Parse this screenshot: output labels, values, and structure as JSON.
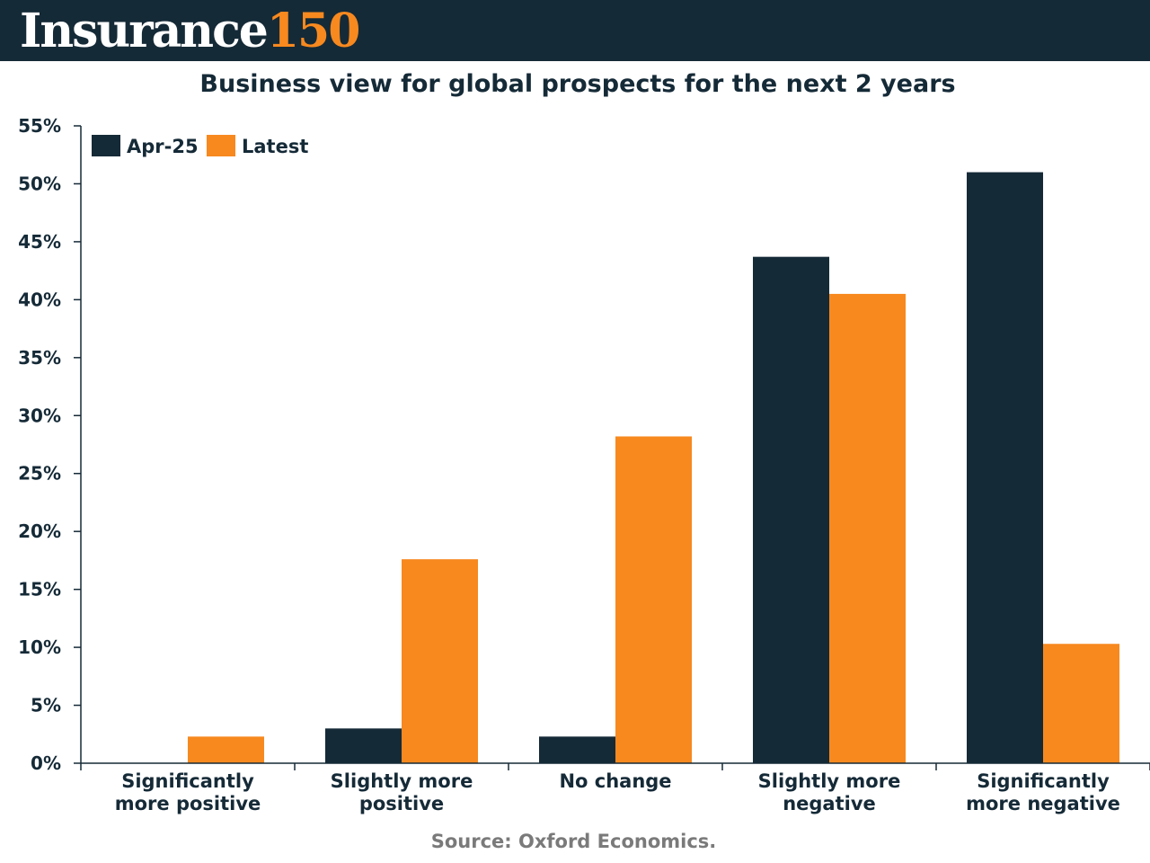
{
  "brand": {
    "word": "Insurance",
    "number": "150"
  },
  "colors": {
    "brand_bg": "#152a37",
    "accent": "#f7891f"
  },
  "source": "Source: Oxford Economics.",
  "chart_data": {
    "type": "bar",
    "title": "Business view for global prospects for the next 2 years",
    "categories": [
      [
        "Significantly",
        "more positive"
      ],
      [
        "Slightly more",
        "positive"
      ],
      [
        "No change"
      ],
      [
        "Slightly more",
        "negative"
      ],
      [
        "Significantly",
        "more negative"
      ]
    ],
    "series": [
      {
        "name": "Apr-25",
        "color": "#152a37",
        "values": [
          0,
          3.0,
          2.3,
          43.7,
          51.0
        ]
      },
      {
        "name": "Latest",
        "color": "#f7891f",
        "values": [
          2.3,
          17.6,
          28.2,
          40.5,
          10.3
        ]
      }
    ],
    "ylim": [
      0,
      55
    ],
    "yticks": [
      "0%",
      "5%",
      "10%",
      "15%",
      "20%",
      "25%",
      "30%",
      "35%",
      "40%",
      "45%",
      "50%",
      "55%"
    ],
    "ytick_values": [
      0,
      5,
      10,
      15,
      20,
      25,
      30,
      35,
      40,
      45,
      50,
      55
    ],
    "grid": false,
    "legend_position": "top-left"
  }
}
